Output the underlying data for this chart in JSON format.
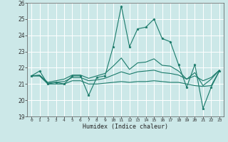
{
  "title": "",
  "xlabel": "Humidex (Indice chaleur)",
  "ylabel": "",
  "xlim": [
    -0.5,
    23.5
  ],
  "ylim": [
    19,
    26
  ],
  "yticks": [
    19,
    20,
    21,
    22,
    23,
    24,
    25,
    26
  ],
  "xticks": [
    0,
    1,
    2,
    3,
    4,
    5,
    6,
    7,
    8,
    9,
    10,
    11,
    12,
    13,
    14,
    15,
    16,
    17,
    18,
    19,
    20,
    21,
    22,
    23
  ],
  "bg_color": "#cce8e8",
  "line_color": "#1a7a6a",
  "grid_color": "#ffffff",
  "lines": {
    "line_spike": [
      21.5,
      21.8,
      21.0,
      21.1,
      21.0,
      21.5,
      21.5,
      20.3,
      21.4,
      21.5,
      23.3,
      25.8,
      23.3,
      24.4,
      24.5,
      25.0,
      23.8,
      23.6,
      22.2,
      20.8,
      22.2,
      19.5,
      20.8,
      21.8
    ],
    "line_upper": [
      21.5,
      21.55,
      21.1,
      21.2,
      21.3,
      21.55,
      21.55,
      21.35,
      21.5,
      21.65,
      22.1,
      22.6,
      21.9,
      22.3,
      22.35,
      22.55,
      22.15,
      22.1,
      21.8,
      21.3,
      21.7,
      20.9,
      21.3,
      21.85
    ],
    "line_mid": [
      21.5,
      21.5,
      21.05,
      21.1,
      21.15,
      21.4,
      21.4,
      21.2,
      21.25,
      21.35,
      21.55,
      21.75,
      21.6,
      21.75,
      21.8,
      21.85,
      21.7,
      21.65,
      21.55,
      21.3,
      21.5,
      21.2,
      21.4,
      21.85
    ],
    "line_flat": [
      21.5,
      21.5,
      21.0,
      21.0,
      21.0,
      21.2,
      21.2,
      21.0,
      21.0,
      21.05,
      21.1,
      21.15,
      21.1,
      21.15,
      21.15,
      21.2,
      21.15,
      21.1,
      21.1,
      21.0,
      20.9,
      20.85,
      20.9,
      21.8
    ]
  }
}
